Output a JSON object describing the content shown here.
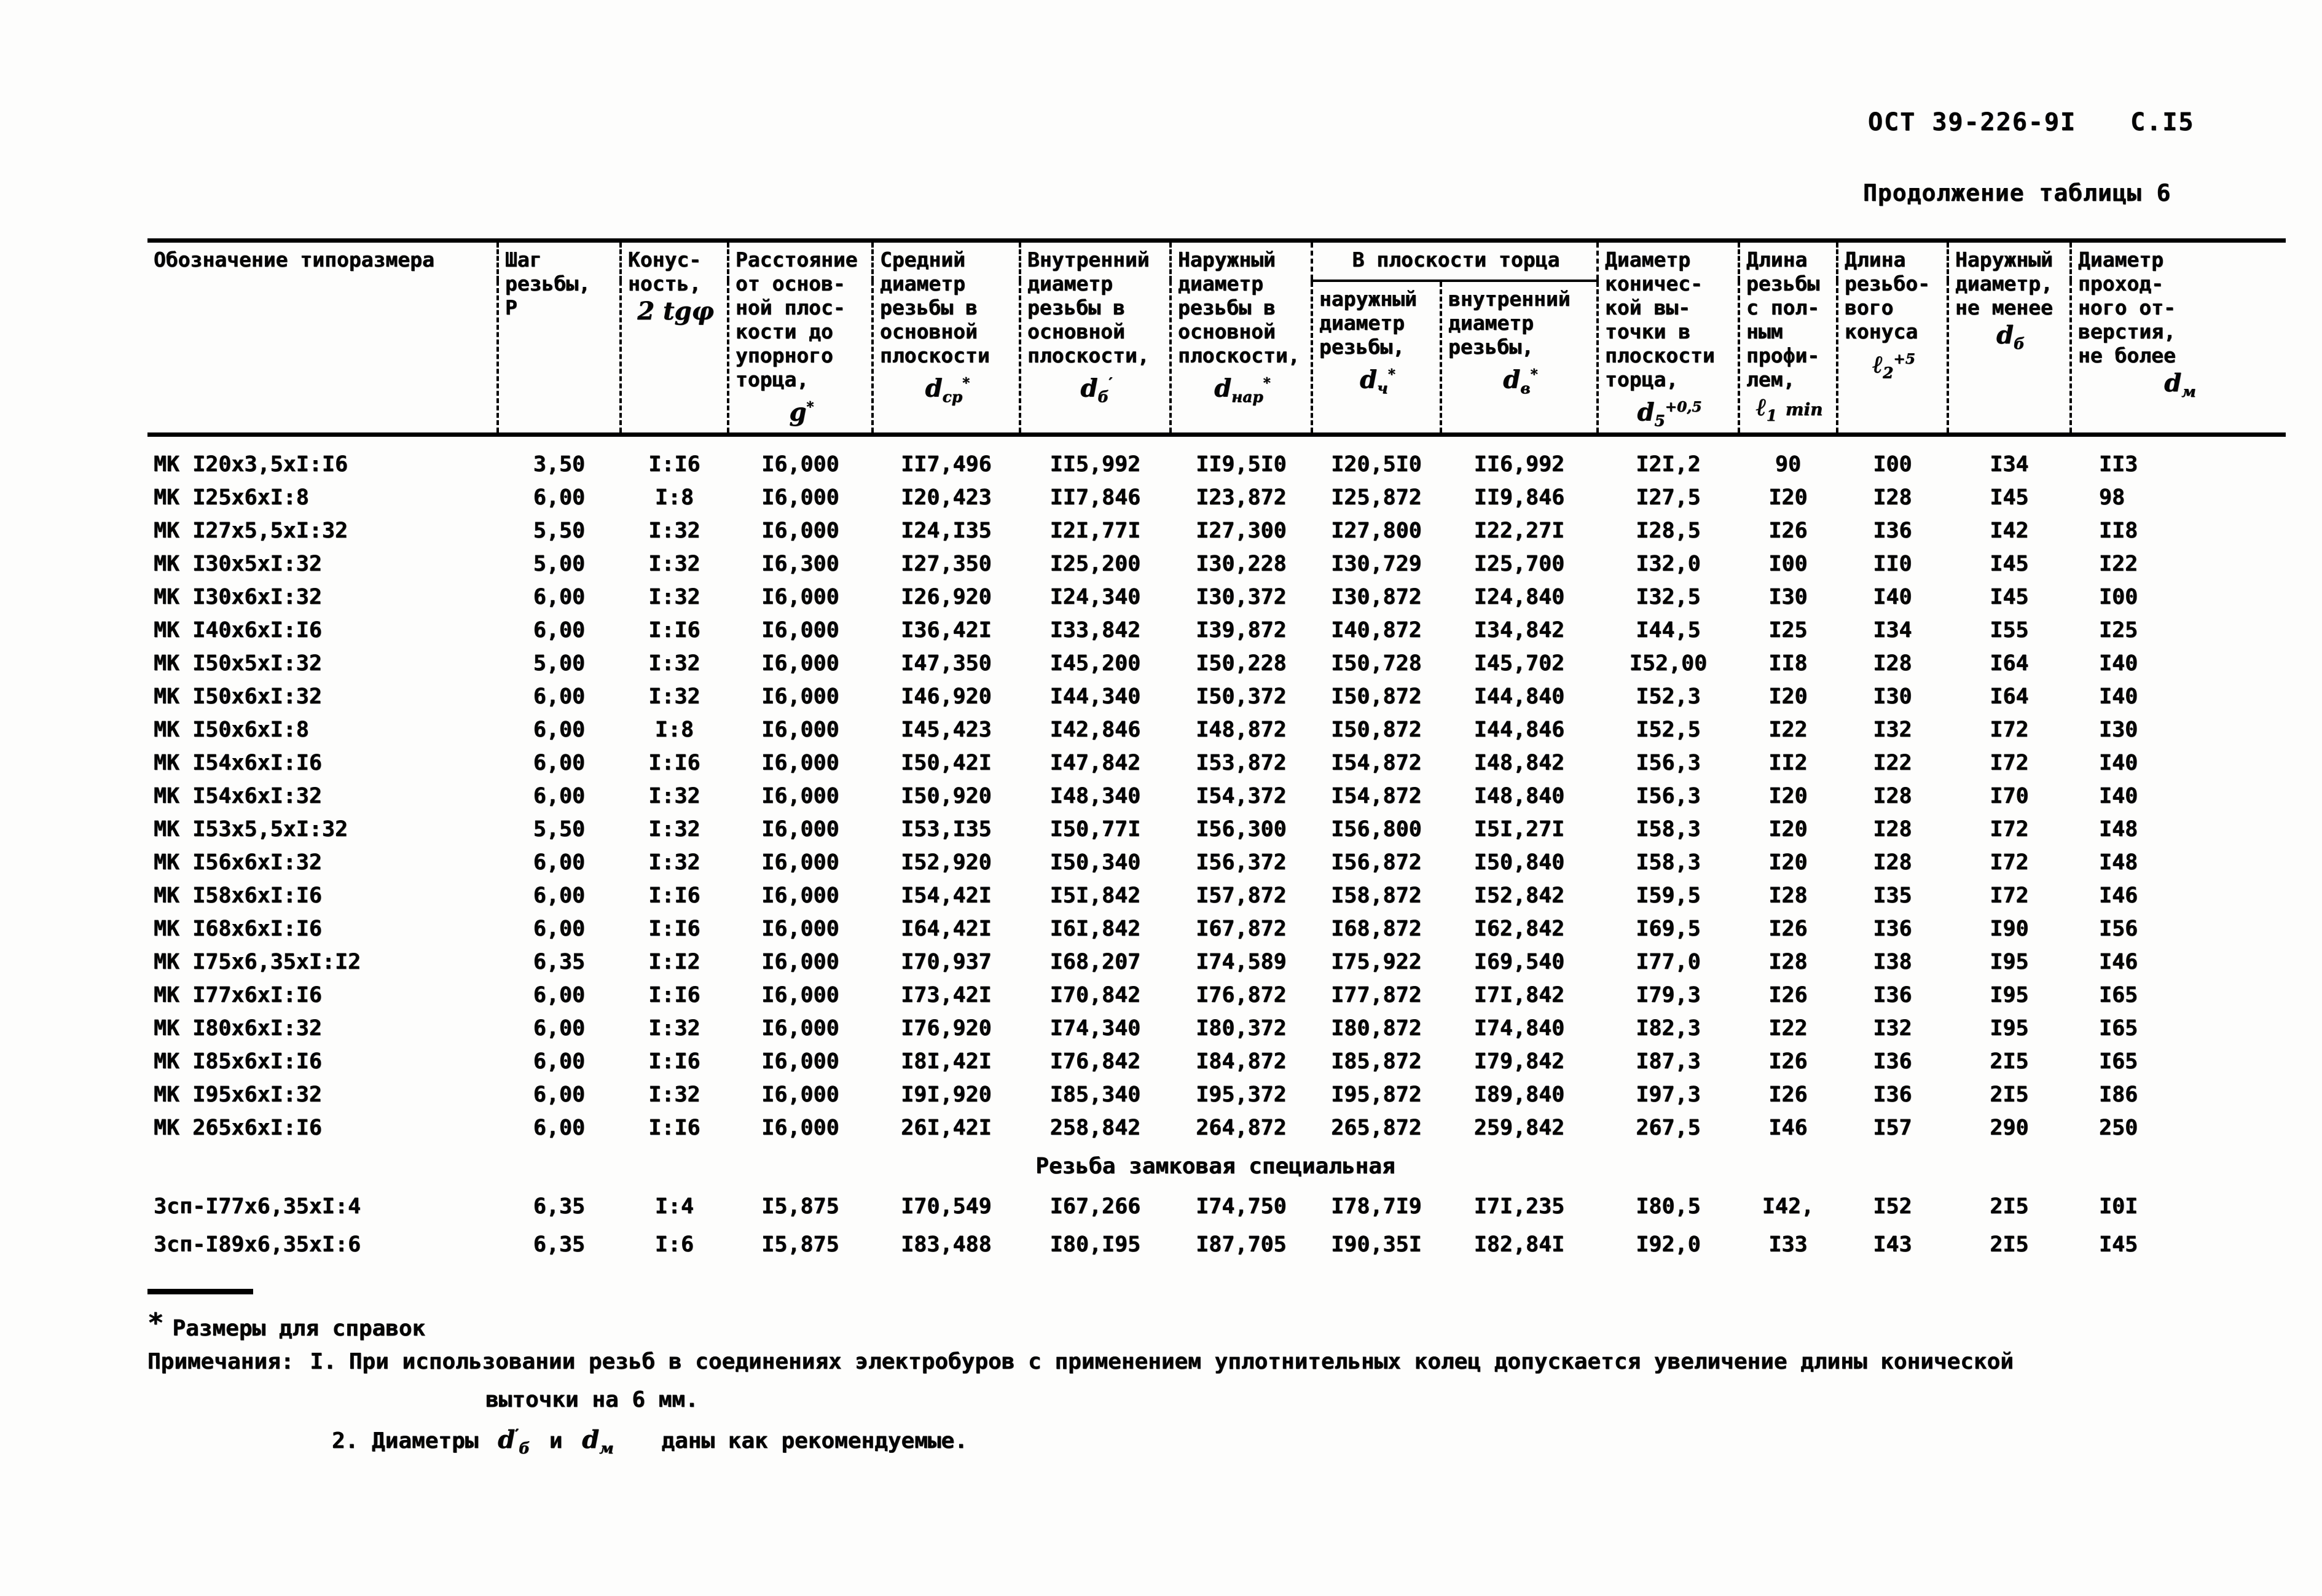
{
  "page": {
    "standard_ref": "ОСТ 39-226-9I",
    "page_number": "C.I5",
    "table_caption": "Продолжение таблицы 6"
  },
  "table": {
    "headers": {
      "designation": "Обозначение типоразмера",
      "pitch": "Шаг\nрезьбы,\nР",
      "taper": "Конус-\nность,",
      "distance": "Расстояние\nот основ-\nной плос-\nкости до\nупорного\nторца,",
      "d_mid": "Средний\nдиаметр\nрезьбы в\nосновной\nплоскости",
      "d_inner": "Внутренний\nдиаметр\nрезьбы в\nосновной\nплоскости,",
      "d_outer": "Наружный\nдиаметр\nрезьбы в\nосновной\nплоскости,",
      "end_plane_group": "В плоскости торца",
      "end_outer": "наружный\nдиаметр\nрезьбы,",
      "end_inner": "внутренний\nдиаметр\nрезьбы,",
      "recess": "Диаметр\nконичес-\nкой вы-\nточки в\nплоскости\nторца,",
      "len_full": "Длина\nрезьбы\nс пол-\nным\nпрофи-\nлем,",
      "len_cone": "Длина\nрезьбо-\nвого\nконуса",
      "outer_min": "Наружный\nдиаметр,\nне менее",
      "bore_max": "Диаметр\nпроход-\nного от-\nверстия,\nне более"
    },
    "symbols": {
      "taper": {
        "base": "2 tgφ"
      },
      "g": {
        "base": "g",
        "sup": "*"
      },
      "dcp": {
        "base": "d",
        "sub": "ср",
        "sup": "*"
      },
      "db": {
        "base": "d",
        "sub": "б",
        "sup": "′"
      },
      "dnar": {
        "base": "d",
        "sub": "нар",
        "sup": "*"
      },
      "dch": {
        "base": "d",
        "sub": "ч",
        "sup": "*"
      },
      "dv": {
        "base": "d",
        "sub": "в",
        "sup": "*"
      },
      "d5": {
        "base": "d",
        "sub": "5",
        "sup": "+0,5"
      },
      "l1": {
        "base": "ℓ",
        "sub": "1",
        "tail": "min"
      },
      "l2": {
        "base": "ℓ",
        "sub": "2",
        "sup": "+5"
      },
      "dc": {
        "base": "d",
        "sub": "б"
      },
      "dm": {
        "base": "d",
        "sub": "м"
      }
    },
    "rows": [
      [
        "МК I20х3,5хI:I6",
        "3,50",
        "I:I6",
        "I6,000",
        "II7,496",
        "II5,992",
        "II9,5I0",
        "I20,5I0",
        "II6,992",
        "I2I,2",
        "90",
        "I00",
        "I34",
        "II3"
      ],
      [
        "МК I25х6хI:8",
        "6,00",
        "I:8",
        "I6,000",
        "I20,423",
        "II7,846",
        "I23,872",
        "I25,872",
        "II9,846",
        "I27,5",
        "I20",
        "I28",
        "I45",
        "98"
      ],
      [
        "МК I27х5,5хI:32",
        "5,50",
        "I:32",
        "I6,000",
        "I24,I35",
        "I2I,77I",
        "I27,300",
        "I27,800",
        "I22,27I",
        "I28,5",
        "I26",
        "I36",
        "I42",
        "II8"
      ],
      [
        "МК I30х5хI:32",
        "5,00",
        "I:32",
        "I6,300",
        "I27,350",
        "I25,200",
        "I30,228",
        "I30,729",
        "I25,700",
        "I32,0",
        "I00",
        "II0",
        "I45",
        "I22"
      ],
      [
        "МК I30х6хI:32",
        "6,00",
        "I:32",
        "I6,000",
        "I26,920",
        "I24,340",
        "I30,372",
        "I30,872",
        "I24,840",
        "I32,5",
        "I30",
        "I40",
        "I45",
        "I00"
      ],
      [
        "МК I40х6хI:I6",
        "6,00",
        "I:I6",
        "I6,000",
        "I36,42I",
        "I33,842",
        "I39,872",
        "I40,872",
        "I34,842",
        "I44,5",
        "I25",
        "I34",
        "I55",
        "I25"
      ],
      [
        "МК I50х5хI:32",
        "5,00",
        "I:32",
        "I6,000",
        "I47,350",
        "I45,200",
        "I50,228",
        "I50,728",
        "I45,702",
        "I52,00",
        "II8",
        "I28",
        "I64",
        "I40"
      ],
      [
        "МК I50х6хI:32",
        "6,00",
        "I:32",
        "I6,000",
        "I46,920",
        "I44,340",
        "I50,372",
        "I50,872",
        "I44,840",
        "I52,3",
        "I20",
        "I30",
        "I64",
        "I40"
      ],
      [
        "МК I50х6хI:8",
        "6,00",
        "I:8",
        "I6,000",
        "I45,423",
        "I42,846",
        "I48,872",
        "I50,872",
        "I44,846",
        "I52,5",
        "I22",
        "I32",
        "I72",
        "I30"
      ],
      [
        "МК I54х6хI:I6",
        "6,00",
        "I:I6",
        "I6,000",
        "I50,42I",
        "I47,842",
        "I53,872",
        "I54,872",
        "I48,842",
        "I56,3",
        "II2",
        "I22",
        "I72",
        "I40"
      ],
      [
        "МК I54х6хI:32",
        "6,00",
        "I:32",
        "I6,000",
        "I50,920",
        "I48,340",
        "I54,372",
        "I54,872",
        "I48,840",
        "I56,3",
        "I20",
        "I28",
        "I70",
        "I40"
      ],
      [
        "МК I53х5,5хI:32",
        "5,50",
        "I:32",
        "I6,000",
        "I53,I35",
        "I50,77I",
        "I56,300",
        "I56,800",
        "I5I,27I",
        "I58,3",
        "I20",
        "I28",
        "I72",
        "I48"
      ],
      [
        "МК I56х6хI:32",
        "6,00",
        "I:32",
        "I6,000",
        "I52,920",
        "I50,340",
        "I56,372",
        "I56,872",
        "I50,840",
        "I58,3",
        "I20",
        "I28",
        "I72",
        "I48"
      ],
      [
        "МК I58х6хI:I6",
        "6,00",
        "I:I6",
        "I6,000",
        "I54,42I",
        "I5I,842",
        "I57,872",
        "I58,872",
        "I52,842",
        "I59,5",
        "I28",
        "I35",
        "I72",
        "I46"
      ],
      [
        "МК I68х6хI:I6",
        "6,00",
        "I:I6",
        "I6,000",
        "I64,42I",
        "I6I,842",
        "I67,872",
        "I68,872",
        "I62,842",
        "I69,5",
        "I26",
        "I36",
        "I90",
        "I56"
      ],
      [
        "МК I75х6,35хI:I2",
        "6,35",
        "I:I2",
        "I6,000",
        "I70,937",
        "I68,207",
        "I74,589",
        "I75,922",
        "I69,540",
        "I77,0",
        "I28",
        "I38",
        "I95",
        "I46"
      ],
      [
        "МК I77х6хI:I6",
        "6,00",
        "I:I6",
        "I6,000",
        "I73,42I",
        "I70,842",
        "I76,872",
        "I77,872",
        "I7I,842",
        "I79,3",
        "I26",
        "I36",
        "I95",
        "I65"
      ],
      [
        "МК I80х6хI:32",
        "6,00",
        "I:32",
        "I6,000",
        "I76,920",
        "I74,340",
        "I80,372",
        "I80,872",
        "I74,840",
        "I82,3",
        "I22",
        "I32",
        "I95",
        "I65"
      ],
      [
        "МК I85х6хI:I6",
        "6,00",
        "I:I6",
        "I6,000",
        "I8I,42I",
        "I76,842",
        "I84,872",
        "I85,872",
        "I79,842",
        "I87,3",
        "I26",
        "I36",
        "2I5",
        "I65"
      ],
      [
        "МК I95х6хI:32",
        "6,00",
        "I:32",
        "I6,000",
        "I9I,920",
        "I85,340",
        "I95,372",
        "I95,872",
        "I89,840",
        "I97,3",
        "I26",
        "I36",
        "2I5",
        "I86"
      ],
      [
        "МК 265х6хI:I6",
        "6,00",
        "I:I6",
        "I6,000",
        "26I,42I",
        "258,842",
        "264,872",
        "265,872",
        "259,842",
        "267,5",
        "I46",
        "I57",
        "290",
        "250"
      ]
    ],
    "section_heading": "Резьба замковая специальная",
    "special_rows": [
      [
        "Зсп-I77х6,35хI:4",
        "6,35",
        "I:4",
        "I5,875",
        "I70,549",
        "I67,266",
        "I74,750",
        "I78,7I9",
        "I7I,235",
        "I80,5",
        "I42,",
        "I52",
        "2I5",
        "I0I"
      ],
      [
        "Зсп-I89х6,35хI:6",
        "6,35",
        "I:6",
        "I5,875",
        "I83,488",
        "I80,I95",
        "I87,705",
        "I90,35I",
        "I82,84I",
        "I92,0",
        "I33",
        "I43",
        "2I5",
        "I45"
      ]
    ]
  },
  "footnotes": {
    "star": "*",
    "star_note": "Размеры для справок",
    "notes_label": "Примечания:",
    "note1_num": "I.",
    "note1_line1": "При использовании резьб в соединениях электробуров с применением уплотнительных колец допускается увеличение длины конической",
    "note1_line2": "выточки на 6 мм.",
    "note2_num": "2.",
    "note2_pre": "Диаметры",
    "note2_mid": "и",
    "note2_post": "даны как рекомендуемые.",
    "sym_db": {
      "base": "d",
      "sup": "′",
      "sub": "б"
    },
    "sym_dm": {
      "base": "d",
      "sub": "м"
    }
  }
}
